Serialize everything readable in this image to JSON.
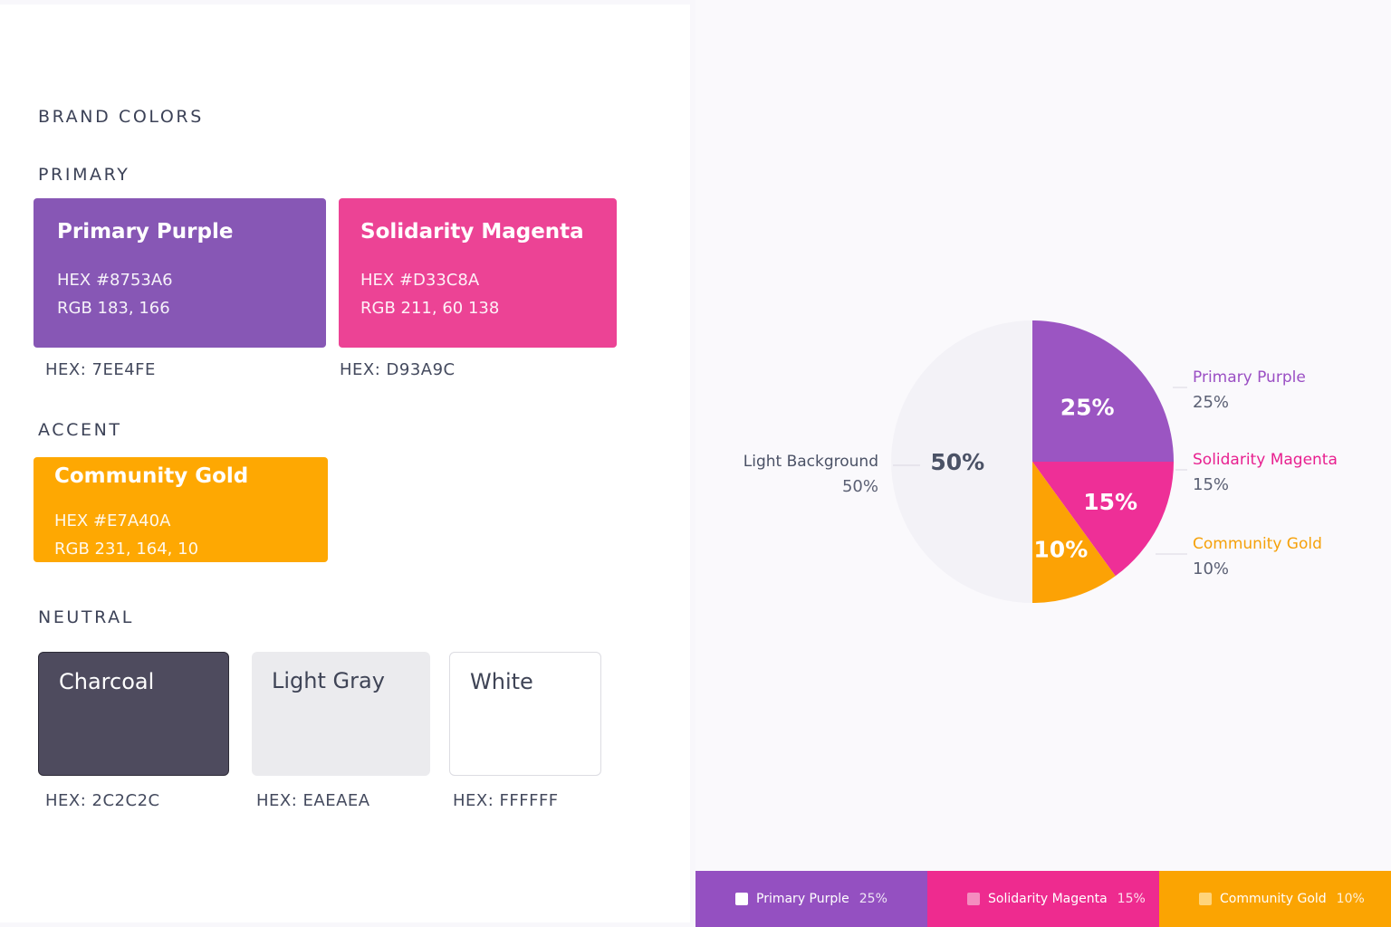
{
  "header": {
    "title": "BRAND COLORS"
  },
  "primary": {
    "label": "PRIMARY",
    "swatches": [
      {
        "name": "Primary Purple",
        "hex_line": "HEX #8753A6",
        "rgb_line": "RGB 183, 166",
        "below": "HEX: 7EE4FE",
        "color": "#8757b5"
      },
      {
        "name": "Solidarity Magenta",
        "hex_line": "HEX #D33C8A",
        "rgb_line": "RGB 211, 60 138",
        "below": "HEX: D93A9C",
        "color": "#ec4395"
      }
    ]
  },
  "accent": {
    "label": "ACCENT",
    "swatches": [
      {
        "name": "Community Gold",
        "hex_line": "HEX #E7A40A",
        "rgb_line": "RGB 231, 164, 10",
        "color": "#fea802"
      }
    ]
  },
  "neutral": {
    "label": "NEUTRAL",
    "swatches": [
      {
        "name": "Charcoal",
        "below": "HEX: 2C2C2C",
        "color": "#4e4b5e"
      },
      {
        "name": "Light Gray",
        "below": "HEX: EAEAEA",
        "color": "#ebebee"
      },
      {
        "name": "White",
        "below": "HEX: FFFFFF",
        "color": "#ffffff"
      }
    ]
  },
  "chart_data": {
    "type": "pie",
    "title": "",
    "slices": [
      {
        "name": "Primary Purple",
        "value": 25,
        "label": "25%",
        "legend_pct": "25%",
        "color": "#9b55c2",
        "text_color": "#9b4fc4"
      },
      {
        "name": "Solidarity Magenta",
        "value": 15,
        "label": "15%",
        "legend_pct": "15%",
        "color": "#ee2f97",
        "text_color": "#e8208f"
      },
      {
        "name": "Community Gold",
        "value": 10,
        "label": "10%",
        "legend_pct": "10%",
        "color": "#fca205",
        "text_color": "#f5a10a"
      },
      {
        "name": "Light Background",
        "value": 50,
        "label": "50%",
        "legend_pct": "50%",
        "color": "#f3f2f7",
        "text_color": "#4b5266"
      }
    ],
    "legend": [
      {
        "name": "Primary Purple",
        "pct": "25%",
        "bg": "#9450c1"
      },
      {
        "name": "Solidarity Magenta",
        "pct": "15%",
        "bg": "#ee2b8f"
      },
      {
        "name": "Community Gold",
        "pct": "10%",
        "bg": "#fba402"
      }
    ],
    "legend_position": "bottom"
  }
}
